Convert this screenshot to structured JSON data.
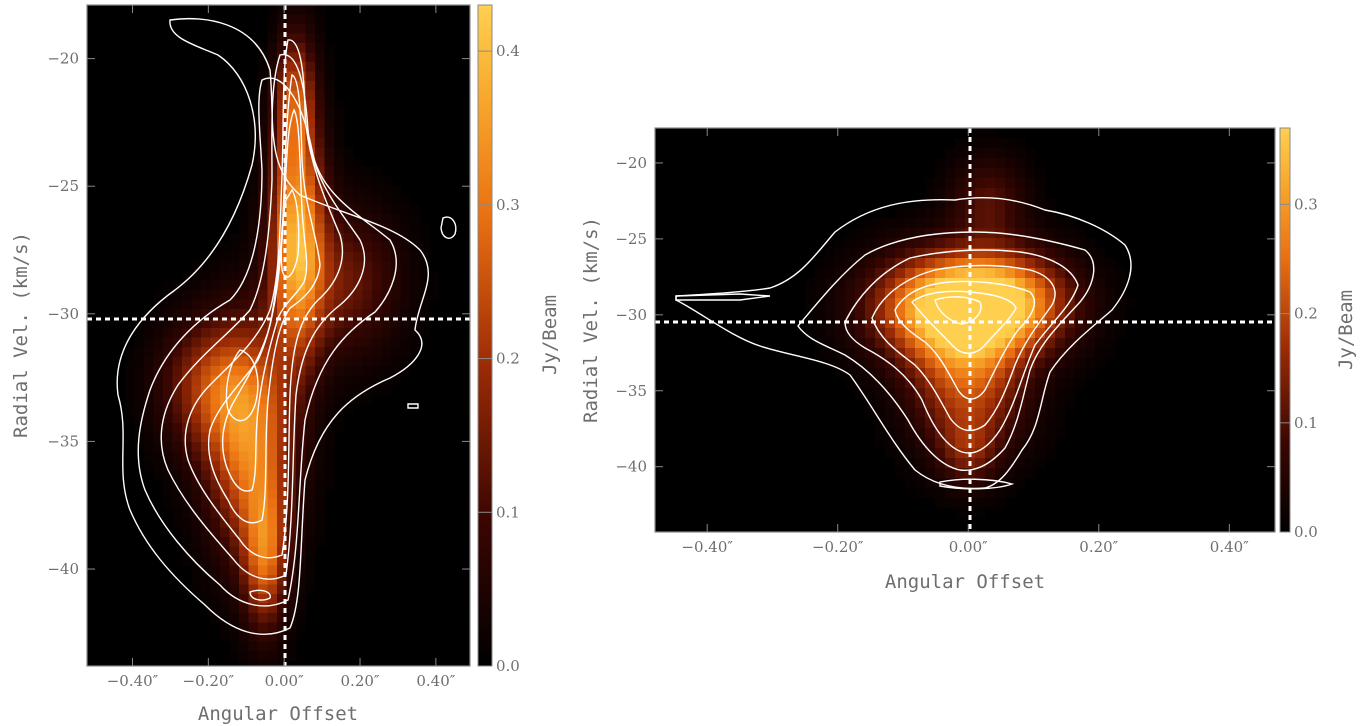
{
  "chart_data": [
    {
      "type": "heatmap",
      "title": "",
      "xlabel": "Angular Offset",
      "ylabel": "Radial Vel. (km/s)",
      "colorbar_label": "Jy/Beam",
      "xlim": [
        -0.52,
        0.49
      ],
      "ylim": [
        -43.8,
        -17.9
      ],
      "x_ticks": [
        -0.4,
        -0.2,
        0.0,
        0.2,
        0.4
      ],
      "x_tick_labels": [
        "−0.40″",
        "−0.20″",
        "0.00″",
        "0.20″",
        "0.40″"
      ],
      "y_ticks": [
        -20,
        -25,
        -30,
        -35,
        -40
      ],
      "y_tick_labels": [
        "−20",
        "−25",
        "−30",
        "−35",
        "−40"
      ],
      "cbar_lim": [
        0.0,
        0.43
      ],
      "cbar_ticks": [
        0.0,
        0.1,
        0.2,
        0.3,
        0.4
      ],
      "cbar_tick_labels": [
        "0.0",
        "0.1",
        "0.2",
        "0.3",
        "0.4"
      ],
      "crosshair": {
        "x": 0.0,
        "y": -30.4
      },
      "emission_components": [
        {
          "x": 0.035,
          "y": -27.0,
          "sx": 0.05,
          "sy": 3.2,
          "amp": 0.36
        },
        {
          "x": 0.03,
          "y": -21.5,
          "sx": 0.035,
          "sy": 1.8,
          "amp": 0.2
        },
        {
          "x": 0.16,
          "y": -28.8,
          "sx": 0.1,
          "sy": 2.0,
          "amp": 0.14
        },
        {
          "x": -0.09,
          "y": -35.0,
          "sx": 0.08,
          "sy": 3.0,
          "amp": 0.3
        },
        {
          "x": -0.05,
          "y": -39.5,
          "sx": 0.04,
          "sy": 2.0,
          "amp": 0.24
        },
        {
          "x": -0.2,
          "y": -32.8,
          "sx": 0.09,
          "sy": 1.8,
          "amp": 0.18
        }
      ]
    },
    {
      "type": "heatmap",
      "title": "",
      "xlabel": "Angular Offset",
      "ylabel": "Radial Vel. (km/s)",
      "colorbar_label": "Jy/Beam",
      "xlim": [
        -0.48,
        0.47
      ],
      "ylim": [
        -44.3,
        -17.7
      ],
      "x_ticks": [
        -0.4,
        -0.2,
        0.0,
        0.2,
        0.4
      ],
      "x_tick_labels": [
        "−0.40″",
        "−0.20″",
        "0.00″",
        "0.20″",
        "0.40″"
      ],
      "y_ticks": [
        -20,
        -25,
        -30,
        -35,
        -40
      ],
      "y_tick_labels": [
        "−20",
        "−25",
        "−30",
        "−35",
        "−40"
      ],
      "cbar_lim": [
        0.0,
        0.37
      ],
      "cbar_ticks": [
        0.0,
        0.1,
        0.2,
        0.3
      ],
      "cbar_tick_labels": [
        "0.0",
        "0.1",
        "0.2",
        "0.3"
      ],
      "crosshair": {
        "x": 0.0,
        "y": -30.4
      },
      "emission_components": [
        {
          "x": -0.03,
          "y": -29.5,
          "sx": 0.08,
          "sy": 2.4,
          "amp": 0.35
        },
        {
          "x": 0.06,
          "y": -29.2,
          "sx": 0.07,
          "sy": 2.2,
          "amp": 0.24
        },
        {
          "x": 0.0,
          "y": -34.5,
          "sx": 0.06,
          "sy": 3.2,
          "amp": 0.2
        },
        {
          "x": 0.0,
          "y": -39.0,
          "sx": 0.03,
          "sy": 1.5,
          "amp": 0.1
        },
        {
          "x": 0.03,
          "y": -22.5,
          "sx": 0.04,
          "sy": 2.0,
          "amp": 0.1
        }
      ]
    }
  ]
}
